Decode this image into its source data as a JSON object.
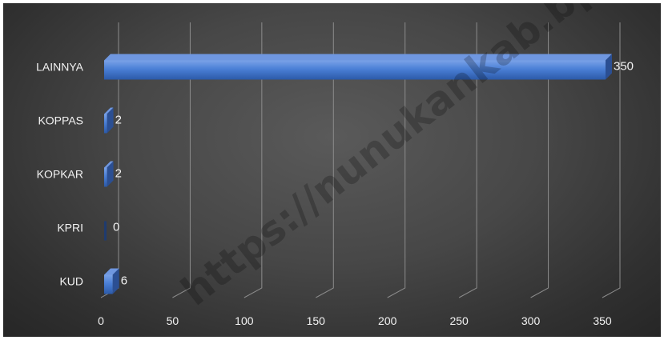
{
  "chart_data": {
    "type": "bar",
    "orientation": "horizontal",
    "style": "3d",
    "categories": [
      "KUD",
      "KPRI",
      "KOPKAR",
      "KOPPAS",
      "LAINNYA"
    ],
    "values": [
      6,
      0,
      2,
      2,
      350
    ],
    "data_labels": [
      "6",
      "0",
      "2",
      "2",
      "350"
    ],
    "xlim": [
      0,
      350
    ],
    "xticks": [
      "0",
      "50",
      "100",
      "150",
      "200",
      "250",
      "300",
      "350"
    ],
    "xtick_values": [
      0,
      50,
      100,
      150,
      200,
      250,
      300,
      350
    ],
    "grid": true,
    "bar_color": "#4472C4",
    "background_color": "#3f3f3f"
  },
  "watermark": "https://nunukankab.bps.go.id"
}
